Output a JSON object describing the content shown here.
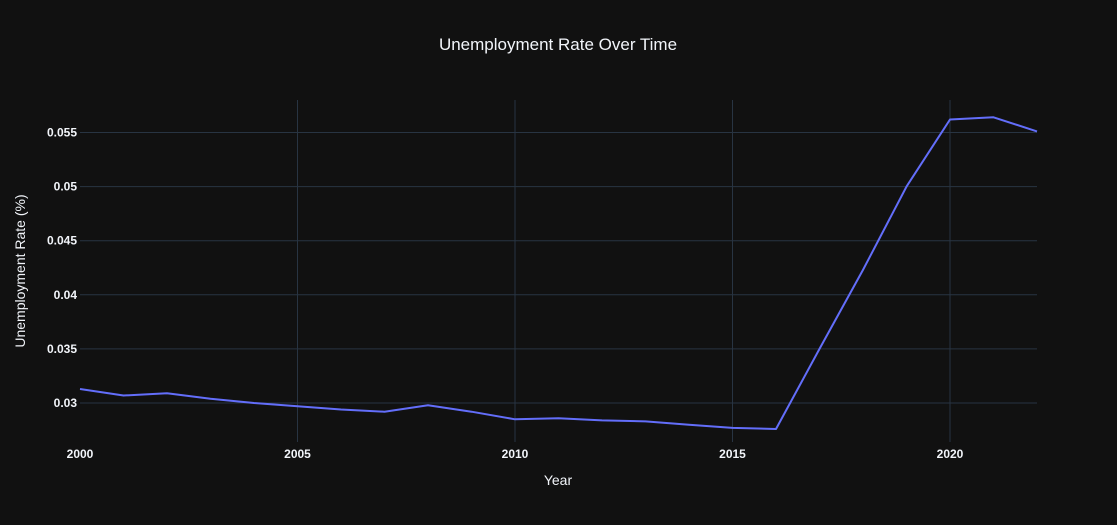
{
  "colors": {
    "background": "#111111",
    "grid": "#283442",
    "text": "#f2f5fa",
    "line": "#636efa"
  },
  "chart_data": {
    "type": "line",
    "title": "Unemployment Rate Over Time",
    "xlabel": "Year",
    "ylabel": "Unemployment Rate (%)",
    "xlim": [
      2000,
      2022
    ],
    "ylim": [
      0.0264,
      0.058
    ],
    "grid": true,
    "x_ticks": [
      {
        "value": 2000,
        "label": "2000"
      },
      {
        "value": 2005,
        "label": "2005"
      },
      {
        "value": 2010,
        "label": "2010"
      },
      {
        "value": 2015,
        "label": "2015"
      },
      {
        "value": 2020,
        "label": "2020"
      }
    ],
    "y_ticks": [
      {
        "value": 0.03,
        "label": "0.03"
      },
      {
        "value": 0.035,
        "label": "0.035"
      },
      {
        "value": 0.04,
        "label": "0.04"
      },
      {
        "value": 0.045,
        "label": "0.045"
      },
      {
        "value": 0.05,
        "label": "0.05"
      },
      {
        "value": 0.055,
        "label": "0.055"
      }
    ],
    "series": [
      {
        "x": [
          2000,
          2001,
          2002,
          2003,
          2004,
          2005,
          2006,
          2007,
          2008,
          2009,
          2010,
          2011,
          2012,
          2013,
          2014,
          2015,
          2016,
          2017,
          2018,
          2019,
          2020,
          2021,
          2022
        ],
        "values": [
          0.0313,
          0.0307,
          0.0309,
          0.0304,
          0.03,
          0.0297,
          0.0294,
          0.0292,
          0.0298,
          0.0292,
          0.0285,
          0.0286,
          0.0284,
          0.0283,
          0.028,
          0.0277,
          0.0276,
          0.035,
          0.0423,
          0.05,
          0.0562,
          0.0564,
          0.0551
        ]
      }
    ]
  }
}
